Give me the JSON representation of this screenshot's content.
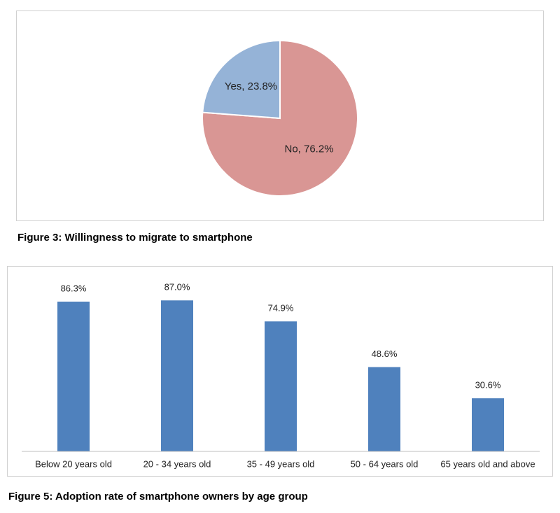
{
  "chart_data": [
    {
      "type": "pie",
      "caption": "Figure 3: Willingness to migrate to smartphone",
      "categories": [
        "Yes",
        "No"
      ],
      "values": [
        23.8,
        76.2
      ],
      "value_labels": [
        "Yes, 23.8%",
        "No, 76.2%"
      ],
      "colors": [
        "#95b3d7",
        "#d99694"
      ]
    },
    {
      "type": "bar",
      "caption": "Figure 5: Adoption rate of smartphone owners by age group",
      "categories": [
        "Below 20 years old",
        "20 - 34 years old",
        "35 - 49 years old",
        "50 - 64 years old",
        "65 years old and above"
      ],
      "values": [
        86.3,
        87.0,
        74.9,
        48.6,
        30.6
      ],
      "value_labels": [
        "86.3%",
        "87.0%",
        "74.9%",
        "48.6%",
        "30.6%"
      ],
      "color": "#4f81bd",
      "ylim": [
        0,
        100
      ]
    }
  ]
}
